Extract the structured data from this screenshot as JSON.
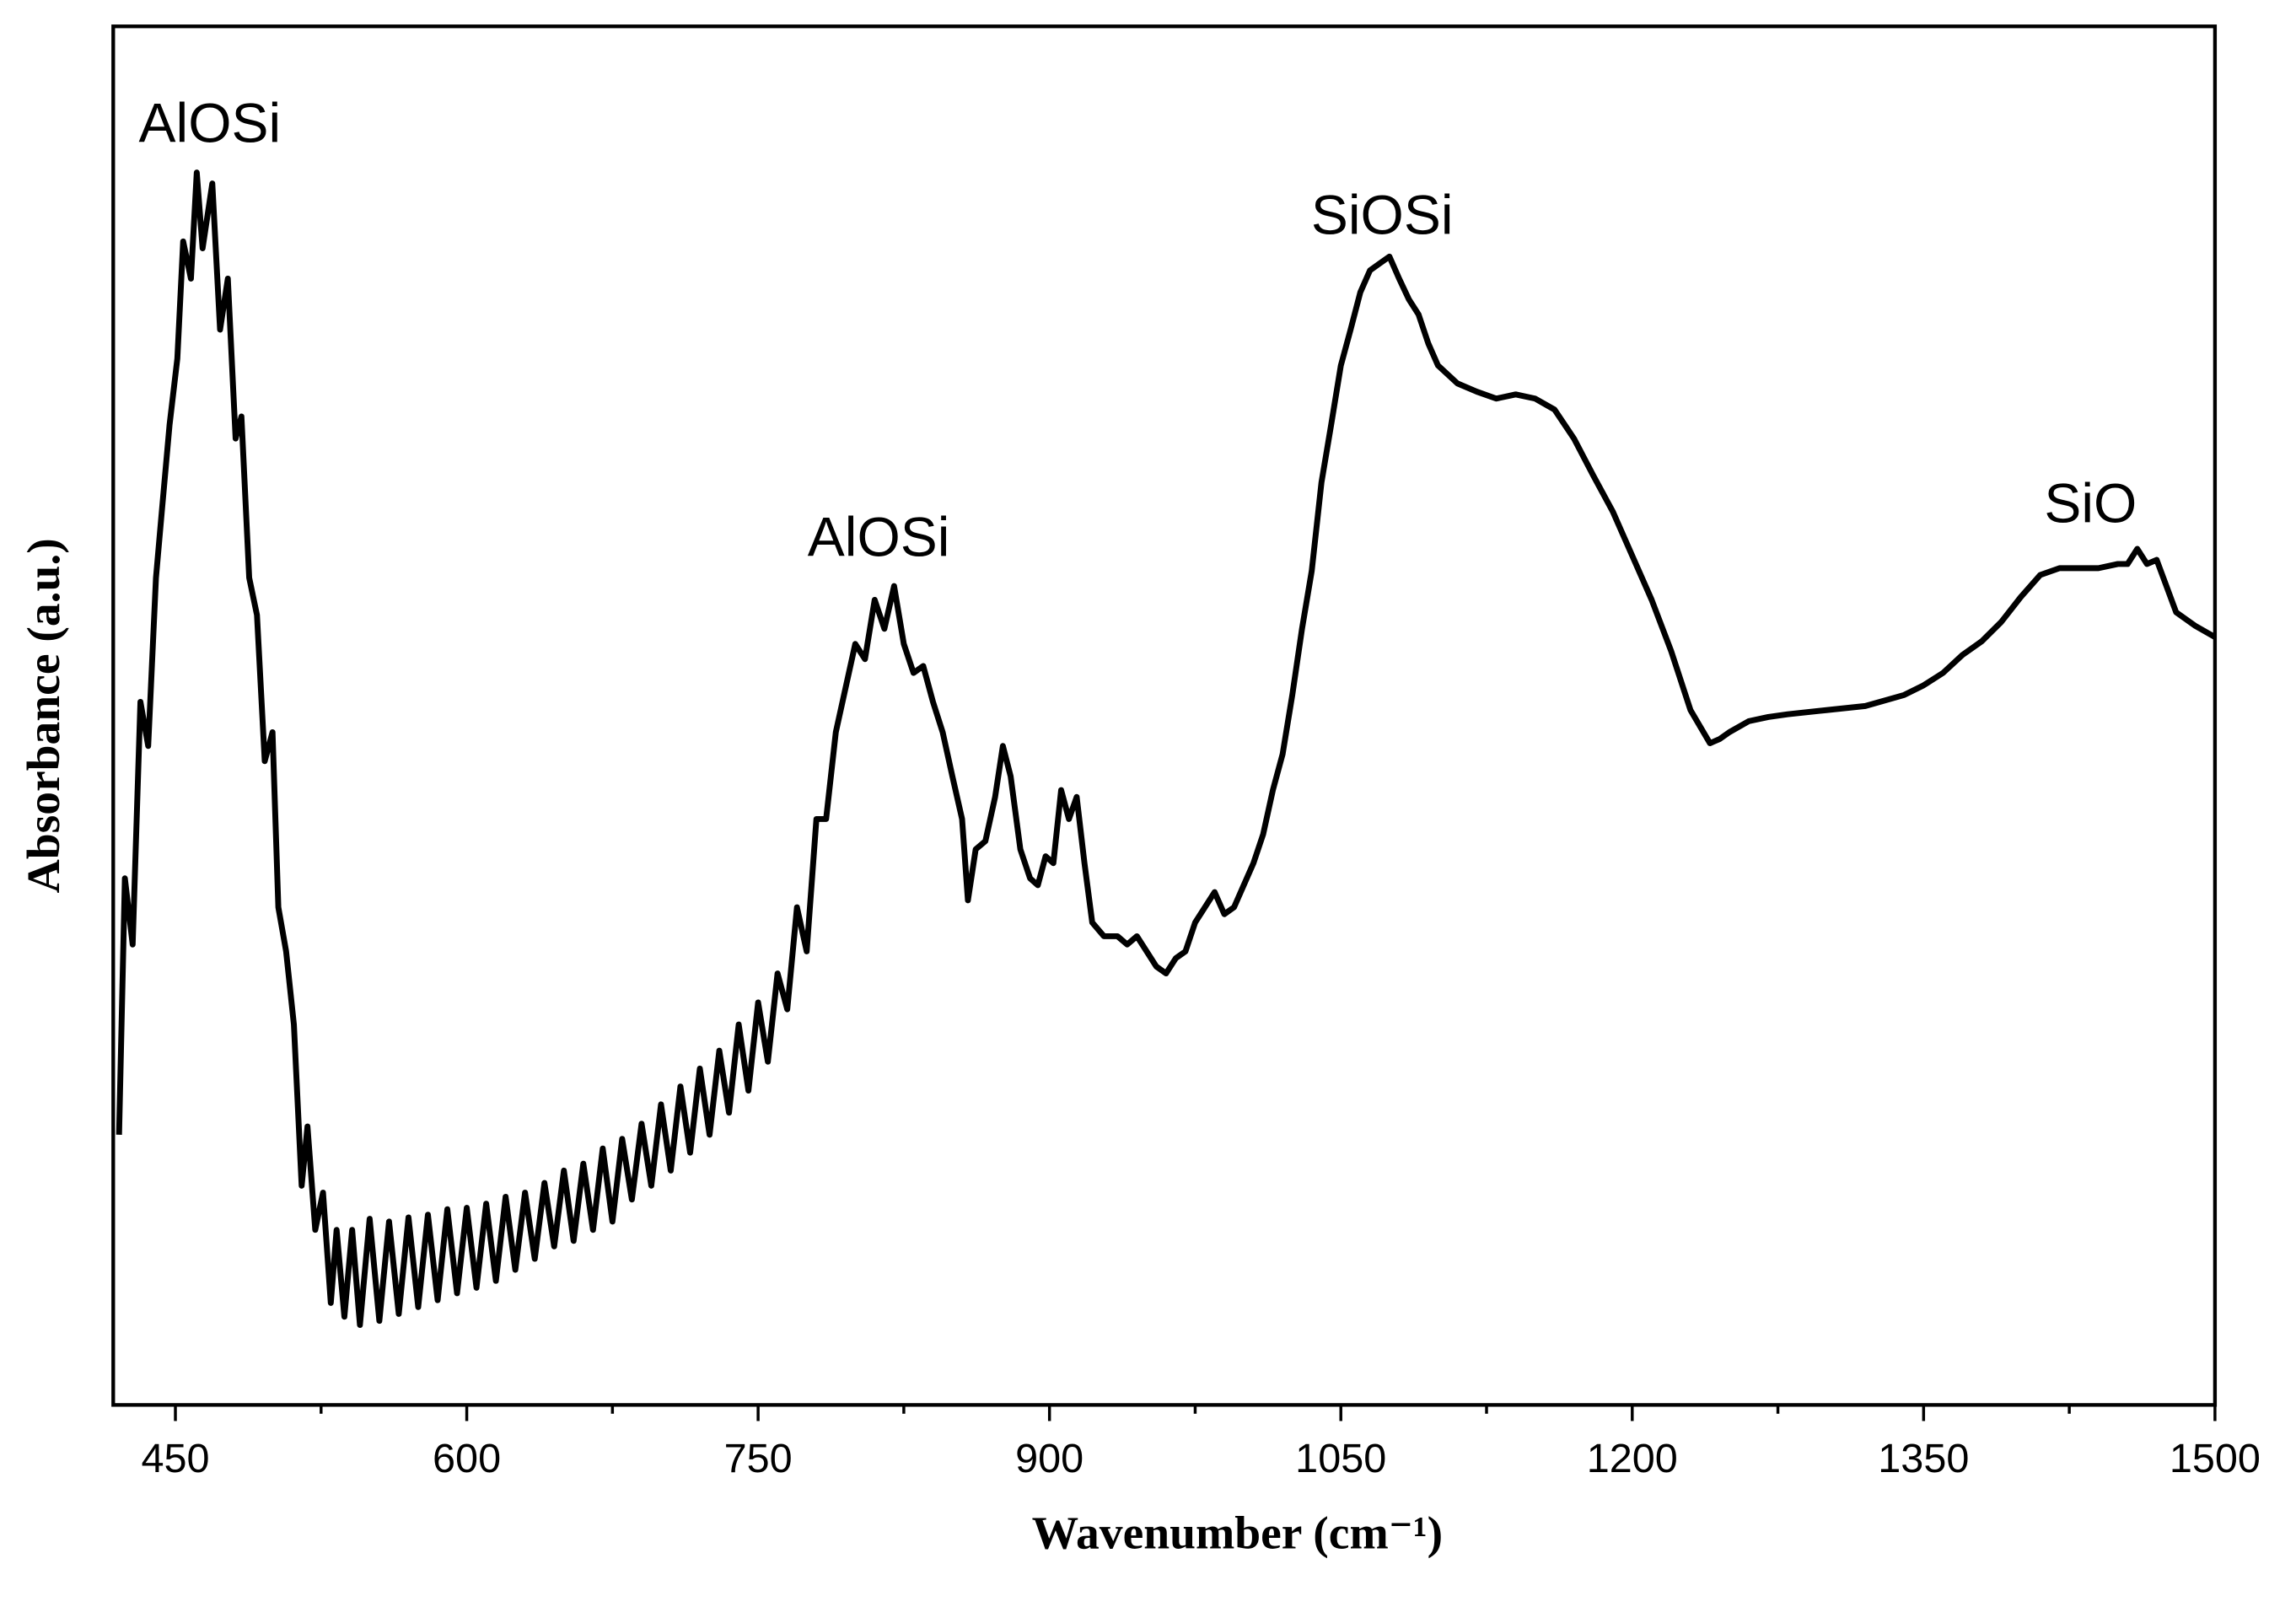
{
  "chart_data": {
    "type": "line",
    "x_label": "Wavenumber (cm⁻¹)",
    "y_label": "Absorbance (a.u.)",
    "annotations": [
      "AlOSi",
      "AlOSi",
      "SiOSi",
      "SiO"
    ],
    "xlim": [
      418,
      1500
    ],
    "ylim": [
      0,
      100
    ],
    "xticks": [
      450,
      600,
      750,
      900,
      1050,
      1200,
      1350,
      1500
    ],
    "xminorticks": [
      525,
      675,
      825,
      975,
      1125,
      1275,
      1425
    ],
    "x": [
      421,
      424,
      428,
      432,
      436,
      440,
      443,
      447,
      451,
      454,
      458,
      461,
      464,
      469,
      473,
      477,
      481,
      484,
      488,
      492,
      496,
      500,
      503,
      507,
      511,
      515,
      518,
      522,
      526,
      530,
      533,
      537,
      541,
      545,
      550,
      555,
      560,
      565,
      570,
      575,
      580,
      585,
      590,
      595,
      600,
      605,
      610,
      615,
      620,
      625,
      630,
      635,
      640,
      645,
      650,
      655,
      660,
      665,
      670,
      675,
      680,
      685,
      690,
      695,
      700,
      705,
      710,
      715,
      720,
      725,
      730,
      735,
      740,
      745,
      750,
      755,
      760,
      765,
      770,
      775,
      780,
      785,
      790,
      800,
      805,
      810,
      815,
      820,
      825,
      830,
      835,
      840,
      845,
      850,
      855,
      858,
      862,
      867,
      872,
      876,
      880,
      885,
      890,
      894,
      898,
      902,
      906,
      910,
      914,
      918,
      922,
      928,
      935,
      940,
      945,
      950,
      955,
      960,
      965,
      970,
      975,
      980,
      985,
      990,
      995,
      1000,
      1005,
      1010,
      1015,
      1020,
      1025,
      1030,
      1035,
      1040,
      1045,
      1050,
      1055,
      1060,
      1065,
      1070,
      1075,
      1080,
      1085,
      1090,
      1095,
      1100,
      1110,
      1120,
      1130,
      1140,
      1150,
      1160,
      1170,
      1180,
      1190,
      1200,
      1210,
      1220,
      1230,
      1240,
      1245,
      1250,
      1260,
      1270,
      1280,
      1300,
      1320,
      1340,
      1350,
      1360,
      1370,
      1380,
      1390,
      1400,
      1410,
      1420,
      1430,
      1440,
      1450,
      1455,
      1460,
      1465,
      1470,
      1475,
      1480,
      1490,
      1500
    ],
    "series": [
      {
        "color": "#000000",
        "values": [
          19.6,
          38.2,
          33.4,
          51.0,
          47.8,
          60.0,
          64.8,
          71.1,
          75.9,
          84.4,
          81.7,
          89.4,
          83.9,
          88.6,
          78.0,
          81.7,
          70.1,
          71.7,
          60.0,
          57.3,
          46.7,
          48.8,
          36.1,
          32.9,
          27.6,
          15.9,
          20.2,
          12.7,
          15.4,
          7.4,
          12.7,
          6.4,
          12.7,
          5.8,
          13.5,
          6.1,
          13.3,
          6.6,
          13.6,
          7.1,
          13.8,
          7.6,
          14.2,
          8.1,
          14.3,
          8.5,
          14.6,
          9.0,
          15.1,
          9.8,
          15.4,
          10.6,
          16.1,
          11.5,
          17.0,
          11.9,
          17.5,
          12.7,
          18.6,
          13.3,
          19.3,
          14.9,
          20.4,
          15.9,
          21.8,
          17.0,
          23.1,
          18.3,
          24.4,
          19.6,
          25.7,
          21.2,
          27.6,
          22.8,
          29.2,
          24.9,
          31.3,
          28.7,
          36.1,
          32.9,
          42.5,
          42.5,
          48.8,
          55.2,
          54.1,
          58.4,
          56.3,
          59.4,
          55.2,
          53.1,
          53.6,
          51.0,
          48.8,
          45.6,
          42.5,
          36.6,
          40.3,
          40.9,
          44.1,
          47.8,
          45.6,
          40.3,
          38.2,
          37.7,
          39.8,
          39.3,
          44.6,
          42.5,
          44.1,
          39.3,
          35.0,
          34.0,
          34.0,
          33.4,
          34.0,
          32.9,
          31.8,
          31.3,
          32.4,
          32.9,
          35.0,
          36.1,
          37.2,
          35.6,
          36.1,
          37.7,
          39.3,
          41.4,
          44.6,
          47.2,
          51.5,
          56.3,
          60.5,
          66.9,
          71.1,
          75.4,
          78.0,
          80.7,
          82.3,
          82.8,
          83.3,
          81.7,
          80.2,
          79.1,
          77.0,
          75.4,
          74.1,
          73.5,
          73.0,
          73.3,
          73.0,
          72.2,
          70.1,
          67.4,
          64.8,
          61.6,
          58.4,
          54.7,
          50.4,
          48.0,
          48.3,
          48.8,
          49.6,
          49.9,
          50.1,
          50.4,
          50.7,
          51.5,
          52.2,
          53.1,
          54.4,
          55.4,
          56.8,
          58.6,
          60.2,
          60.7,
          60.7,
          60.7,
          61.0,
          61.0,
          62.1,
          61.0,
          61.3,
          59.4,
          57.5,
          56.5,
          55.7
        ]
      }
    ]
  }
}
